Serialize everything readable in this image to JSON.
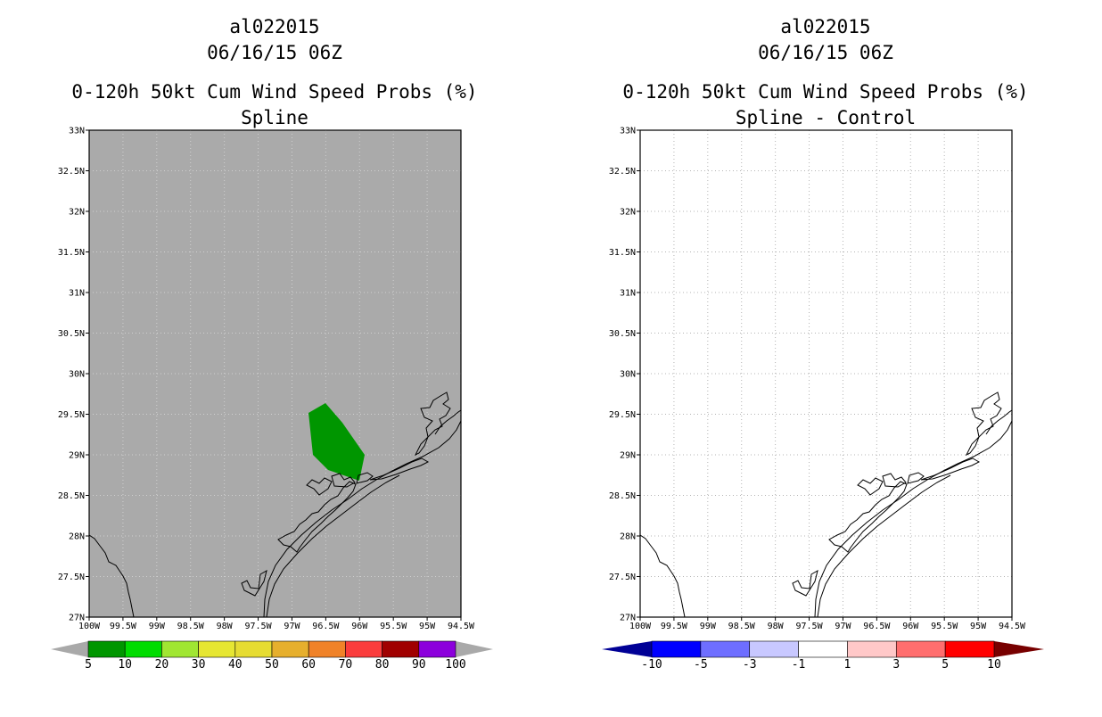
{
  "left_panel": {
    "title_lines": [
      "al022015",
      "06/16/15 06Z",
      "0-120h 50kt Cum Wind Speed Probs (%)",
      "Spline"
    ],
    "colorbar": {
      "labels": [
        "5",
        "10",
        "20",
        "30",
        "40",
        "50",
        "60",
        "70",
        "80",
        "90",
        "100"
      ],
      "colors": [
        "#009600",
        "#00dc00",
        "#a0e632",
        "#e6e632",
        "#e6dc32",
        "#e6af2d",
        "#f08228",
        "#fa3c3c",
        "#a00000",
        "#8c00dc"
      ],
      "end_color": "#a9a9a9"
    },
    "background_color": "#aaaaaa",
    "prob_area": {
      "value_range": "5-10",
      "color": "#009600"
    }
  },
  "right_panel": {
    "title_lines": [
      "al022015",
      "06/16/15 06Z",
      "0-120h 50kt Cum Wind Speed Probs (%)",
      "Spline - Control"
    ],
    "colorbar": {
      "labels": [
        "-10",
        "-5",
        "-3",
        "-1",
        "1",
        "3",
        "5",
        "10"
      ],
      "colors": [
        "#0000c8",
        "#0000ff",
        "#6e6eff",
        "#c8c8ff",
        "#ffffff",
        "#ffc8c8",
        "#ff6e6e",
        "#ff0000",
        "#c80000"
      ],
      "left_end_color": "#000096",
      "right_end_color": "#780000"
    }
  },
  "map": {
    "lat_labels": [
      "33N",
      "32.5N",
      "32N",
      "31.5N",
      "31N",
      "30.5N",
      "30N",
      "29.5N",
      "29N",
      "28.5N",
      "28N",
      "27.5N",
      "27N"
    ],
    "lon_labels": [
      "100W",
      "99.5W",
      "99W",
      "98.5W",
      "98W",
      "97.5W",
      "97W",
      "96.5W",
      "96W",
      "95.5W",
      "95W",
      "94.5W"
    ]
  }
}
